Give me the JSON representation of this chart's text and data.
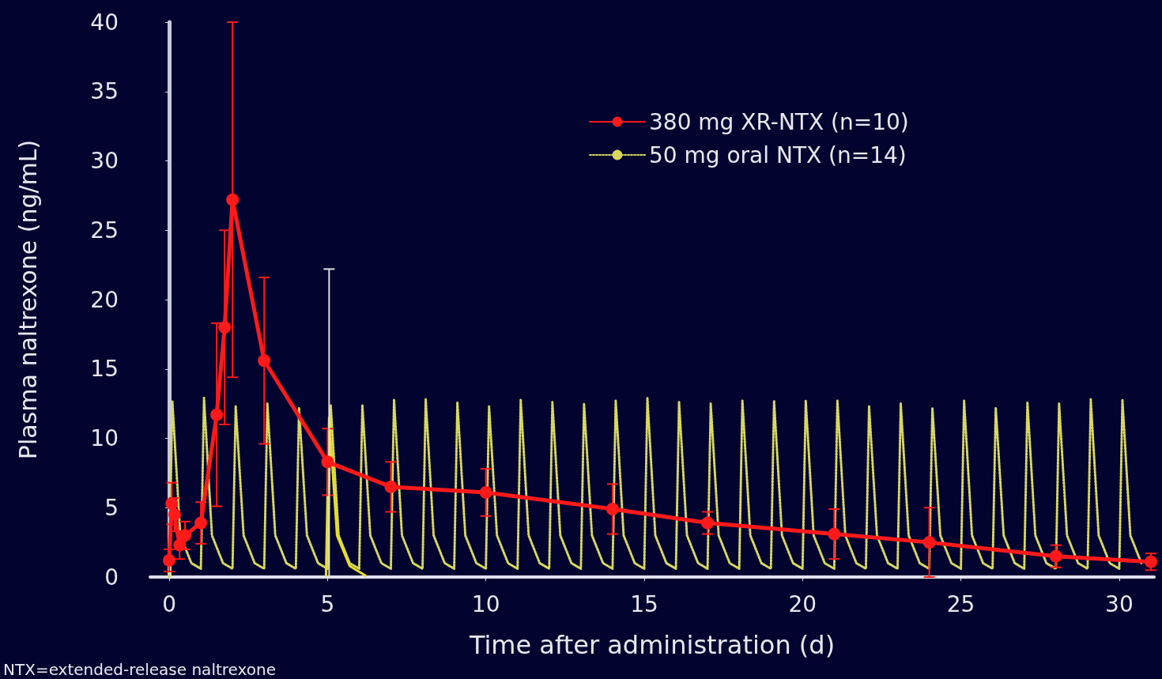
{
  "chart_data": {
    "type": "line",
    "xlabel": "Time after administration (d)",
    "ylabel": "Plasma naltrexone (ng/mL)",
    "xlim": [
      -0.6,
      31.1
    ],
    "xticks": [
      0,
      5,
      10,
      15,
      20,
      25,
      30
    ],
    "ylim": [
      0,
      40
    ],
    "yticks": [
      0,
      5,
      10,
      15,
      20,
      25,
      30,
      35,
      40
    ],
    "grid": false,
    "legend": "top right",
    "annotations": [
      "NTX=extended-release naltrexone"
    ],
    "series": [
      {
        "name": "380 mg XR-NTX (n=10)",
        "color": "#ff1a1a",
        "marker": "circle",
        "line_style": "solid",
        "x": [
          0,
          0.08,
          0.17,
          0.33,
          0.5,
          1,
          1.5,
          1.75,
          2,
          3,
          5,
          7,
          10,
          14,
          17,
          21,
          24,
          28,
          31
        ],
        "values": [
          1.2,
          5.3,
          4.5,
          2.3,
          3,
          3.9,
          11.7,
          18,
          27.2,
          15.6,
          8.3,
          6.5,
          6.1,
          4.9,
          3.9,
          3.1,
          2.5,
          1.5,
          1.1
        ],
        "errors": [
          0.8,
          1.5,
          1.2,
          1,
          1,
          1.5,
          6.6,
          7,
          12.8,
          6,
          2.4,
          1.8,
          1.7,
          1.8,
          0.8,
          1.8,
          2.5,
          0.8,
          0.6
        ]
      },
      {
        "name": "50 mg oral NTX (n=14)",
        "color": "#d8d860",
        "marker": "none",
        "line_style": "dotted",
        "x": [
          0,
          0.1,
          0.35,
          0.7,
          1,
          1.1,
          1.35,
          1.7,
          2,
          2.1,
          2.35,
          2.7,
          3,
          3.1,
          3.35,
          3.7,
          4,
          4.1,
          4.35,
          4.7,
          5,
          5.1,
          5.35,
          5.7,
          6,
          6.1,
          6.35,
          6.7,
          7,
          7.1,
          7.35,
          7.7,
          8,
          8.1,
          8.35,
          8.7,
          9,
          9.1,
          9.35,
          9.7,
          10,
          10.1,
          10.35,
          10.7,
          11,
          11.1,
          11.35,
          11.7,
          12,
          12.1,
          12.35,
          12.7,
          13,
          13.1,
          13.35,
          13.7,
          14,
          14.1,
          14.35,
          14.7,
          15,
          15.1,
          15.35,
          15.7,
          16,
          16.1,
          16.35,
          16.7,
          17,
          17.1,
          17.35,
          17.7,
          18,
          18.1,
          18.35,
          18.7,
          19,
          19.1,
          19.35,
          19.7,
          20,
          20.1,
          20.35,
          20.7,
          21,
          21.1,
          21.35,
          21.7,
          22,
          22.1,
          22.35,
          22.7,
          23,
          23.1,
          23.35,
          23.7,
          24,
          24.1,
          24.35,
          24.7,
          25,
          25.1,
          25.35,
          25.7,
          26,
          26.1,
          26.35,
          26.7,
          27,
          27.1,
          27.35,
          27.7,
          28,
          28.1,
          28.35,
          28.7,
          29,
          29.1,
          29.35,
          29.7,
          30,
          30.1,
          30.35,
          30.7
        ],
        "values": [
          0,
          12.7,
          3,
          1,
          0.6,
          12.9,
          3,
          1,
          0.6,
          12.3,
          3,
          1,
          0.6,
          12.5,
          3,
          1,
          0.6,
          12.2,
          3,
          1,
          0.6,
          12.4,
          3,
          1,
          0.6,
          12.4,
          3,
          1,
          0.6,
          12.8,
          3,
          1,
          0.6,
          12.8,
          3,
          1,
          0.6,
          12.6,
          3,
          1,
          0.6,
          12.3,
          3,
          1,
          0.6,
          12.8,
          3,
          1,
          0.6,
          12.6,
          3,
          1,
          0.6,
          12.5,
          3,
          1,
          0.6,
          12.7,
          3,
          1,
          0.6,
          12.9,
          3,
          1,
          0.6,
          12.6,
          3,
          1,
          0.6,
          12.5,
          3,
          1,
          0.6,
          12.7,
          3,
          1,
          0.6,
          12.7,
          3,
          1,
          0.6,
          12.7,
          3,
          1,
          0.6,
          12.7,
          3,
          1,
          0.6,
          12.3,
          3,
          1,
          0.6,
          12.5,
          3,
          1,
          0.6,
          12.2,
          3,
          1,
          0.6,
          12.7,
          3,
          1,
          0.6,
          12.2,
          3,
          1,
          0.6,
          12.6,
          3,
          1,
          0.6,
          12.5,
          3,
          1,
          0.6,
          12.8,
          3,
          1,
          0.6,
          12.8,
          3,
          1
        ]
      },
      {
        "color": "#e8e020",
        "marker": "none",
        "line_style": "solid",
        "x": [
          4.95,
          5.05,
          5.3,
          5.7,
          6.2
        ],
        "values": [
          0,
          11.5,
          3,
          0.8,
          0.1
        ],
        "errors": [
          null,
          [
            0,
            22.2
          ],
          null,
          null,
          null
        ]
      }
    ]
  }
}
